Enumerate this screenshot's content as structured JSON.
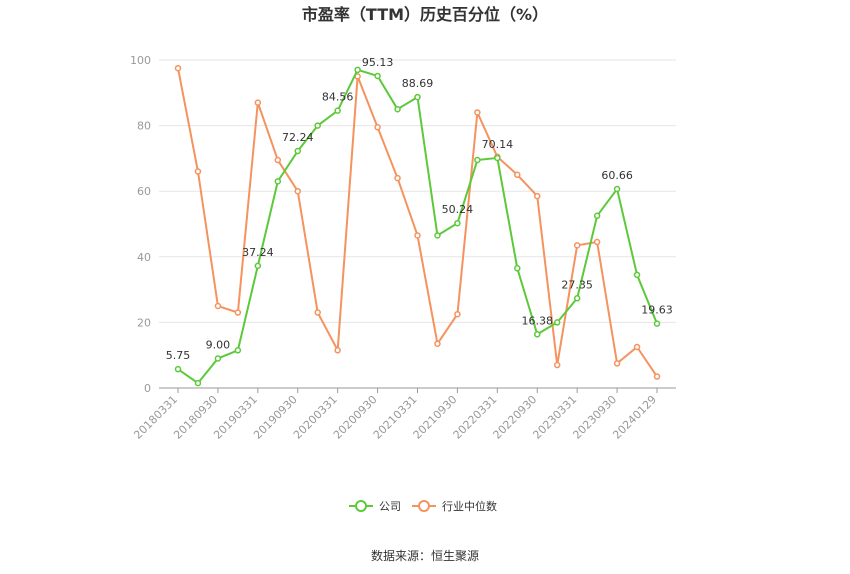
{
  "chart_data": {
    "type": "line",
    "title": "市盈率（TTM）历史百分位（%）",
    "source_text": "数据来源：恒生聚源",
    "ylim": [
      0,
      100
    ],
    "y_ticks": [
      "0",
      "20",
      "40",
      "60",
      "80",
      "100"
    ],
    "x_tick_labels": [
      "20180331",
      "20180930",
      "20190331",
      "20190930",
      "20200331",
      "20200930",
      "20210331",
      "20210930",
      "20220331",
      "20220930",
      "20230331",
      "20230930",
      "20240129"
    ],
    "legend_position": "bottom-center",
    "grid": true,
    "series": [
      {
        "name": "公司",
        "color": "#5cc93a",
        "values": [
          5.75,
          1.5,
          9.0,
          11.5,
          37.24,
          63.0,
          72.24,
          80.0,
          84.56,
          97.0,
          95.13,
          85.0,
          88.69,
          46.5,
          50.24,
          69.5,
          70.14,
          36.5,
          16.38,
          20.0,
          27.35,
          52.5,
          60.66,
          34.5,
          19.63
        ],
        "labels": {
          "0": "5.75",
          "2": "9.00",
          "4": "37.24",
          "6": "72.24",
          "8": "84.56",
          "10": "95.13",
          "12": "88.69",
          "14": "50.24",
          "16": "70.14",
          "18": "16.38",
          "20": "27.35",
          "22": "60.66",
          "24": "19.63"
        }
      },
      {
        "name": "行业中位数",
        "color": "#f5925e",
        "values": [
          97.5,
          66.0,
          25.0,
          23.0,
          87.0,
          69.5,
          60.0,
          23.0,
          11.5,
          95.0,
          79.5,
          64.0,
          46.5,
          13.5,
          22.5,
          84.0,
          70.5,
          65.0,
          58.5,
          7.0,
          43.5,
          44.5,
          7.5,
          12.5,
          3.5
        ]
      }
    ]
  }
}
